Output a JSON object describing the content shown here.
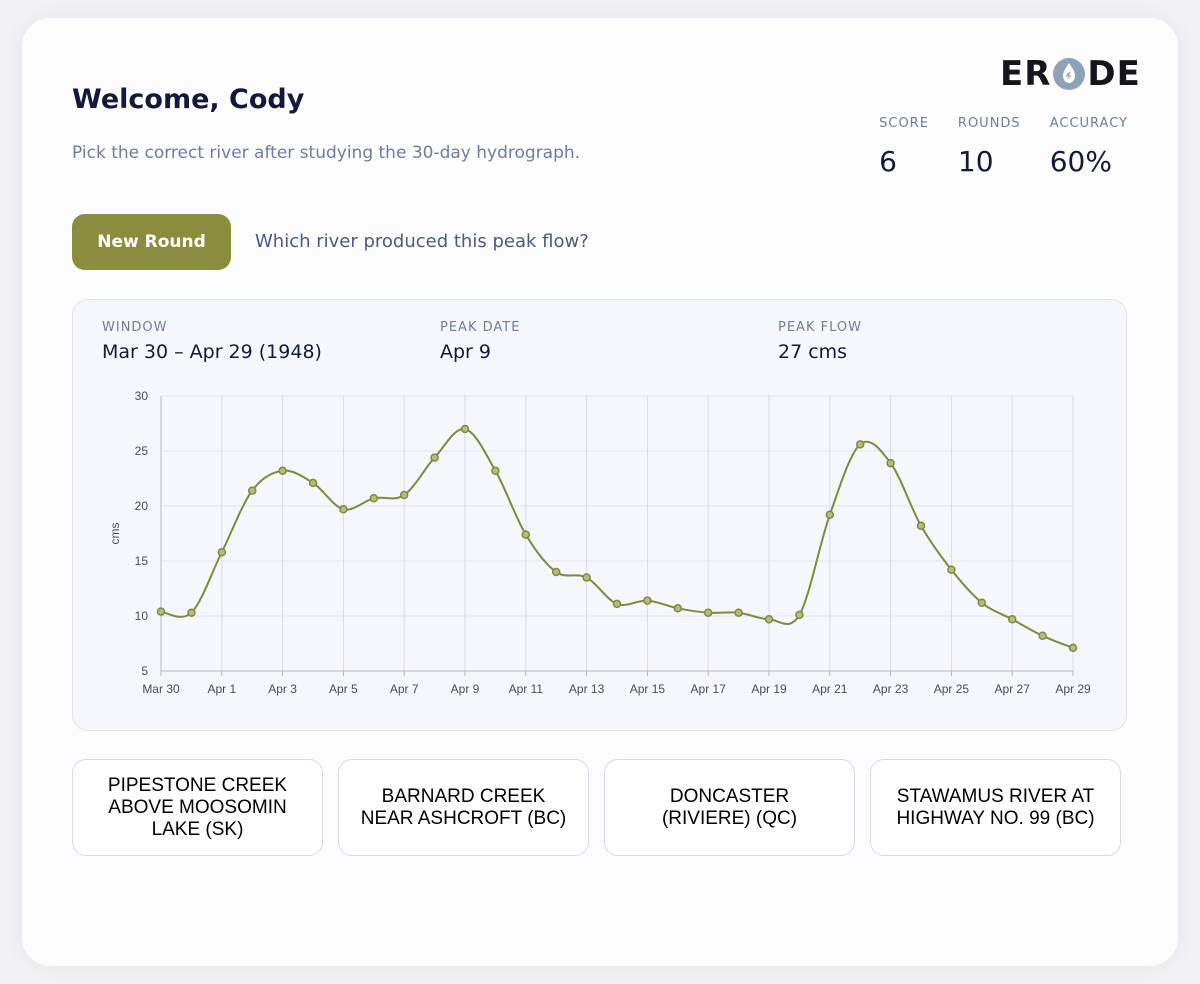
{
  "brand": {
    "logo_text": "ERODE",
    "accent_color": "#8a8c3e",
    "line_color": "#7f8a3f"
  },
  "header": {
    "title": "Welcome, Cody",
    "subtitle": "Pick the correct river after studying the 30-day hydrograph."
  },
  "stats": [
    {
      "label": "SCORE",
      "value": "6"
    },
    {
      "label": "ROUNDS",
      "value": "10"
    },
    {
      "label": "ACCURACY",
      "value": "60%"
    }
  ],
  "actions": {
    "new_round_label": "New Round",
    "question": "Which river produced this peak flow?"
  },
  "panel": {
    "window_label": "WINDOW",
    "window_value": "Mar 30 – Apr 29 (1948)",
    "peak_date_label": "PEAK DATE",
    "peak_date_value": "Apr 9",
    "peak_flow_label": "PEAK FLOW",
    "peak_flow_value": "27 cms"
  },
  "chart_data": {
    "type": "line",
    "ylabel": "cms",
    "xlabel": "",
    "ylim": [
      5,
      30
    ],
    "yticks": [
      5,
      10,
      15,
      20,
      25,
      30
    ],
    "grid": true,
    "x": [
      "Mar 30",
      "Mar 31",
      "Apr 1",
      "Apr 2",
      "Apr 3",
      "Apr 4",
      "Apr 5",
      "Apr 6",
      "Apr 7",
      "Apr 8",
      "Apr 9",
      "Apr 10",
      "Apr 11",
      "Apr 12",
      "Apr 13",
      "Apr 14",
      "Apr 15",
      "Apr 16",
      "Apr 17",
      "Apr 18",
      "Apr 19",
      "Apr 20",
      "Apr 21",
      "Apr 22",
      "Apr 23",
      "Apr 24",
      "Apr 25",
      "Apr 26",
      "Apr 27",
      "Apr 28",
      "Apr 29"
    ],
    "xtick_labels": [
      "Mar 30",
      "Apr 1",
      "Apr 3",
      "Apr 5",
      "Apr 7",
      "Apr 9",
      "Apr 11",
      "Apr 13",
      "Apr 15",
      "Apr 17",
      "Apr 19",
      "Apr 21",
      "Apr 23",
      "Apr 25",
      "Apr 27",
      "Apr 29"
    ],
    "series": [
      {
        "values": [
          10.4,
          10.3,
          15.8,
          21.4,
          23.2,
          22.1,
          19.7,
          20.7,
          21.0,
          24.4,
          27.0,
          23.2,
          17.4,
          14.0,
          13.5,
          11.1,
          11.4,
          10.7,
          10.3,
          10.3,
          9.7,
          10.1,
          19.2,
          25.6,
          23.9,
          18.2,
          14.2,
          11.2,
          9.7,
          8.2,
          7.1
        ]
      }
    ]
  },
  "options": [
    "PIPESTONE CREEK ABOVE MOOSOMIN LAKE (SK)",
    "BARNARD CREEK NEAR ASHCROFT (BC)",
    "DONCASTER (RIVIERE) (QC)",
    "STAWAMUS RIVER AT HIGHWAY NO. 99 (BC)"
  ]
}
